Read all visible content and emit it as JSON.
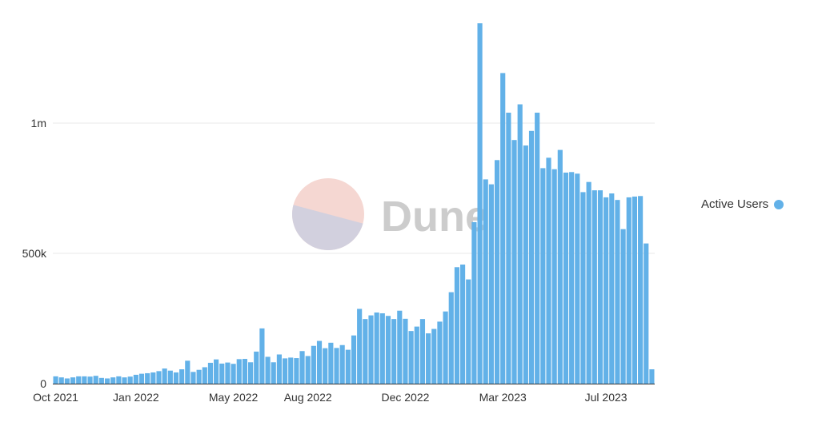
{
  "brand": {
    "watermark": "Dune"
  },
  "colors": {
    "bar": "#62b1e8",
    "grid": "#e8e8e8",
    "axis": "#333333",
    "wm_top": "#f5d7d2",
    "wm_bottom": "#d2d0de"
  },
  "chart_data": {
    "type": "bar",
    "grid": true,
    "legend_position": "right",
    "ylim": [
      0,
      1400000
    ],
    "y_ticks": [
      {
        "value": 0,
        "label": "0"
      },
      {
        "value": 500000,
        "label": "500k"
      },
      {
        "value": 1000000,
        "label": "1m"
      }
    ],
    "x_ticks": [
      {
        "index": 0,
        "label": "Oct 2021"
      },
      {
        "index": 14,
        "label": "Jan 2022"
      },
      {
        "index": 31,
        "label": "May 2022"
      },
      {
        "index": 44,
        "label": "Aug 2022"
      },
      {
        "index": 61,
        "label": "Dec 2022"
      },
      {
        "index": 78,
        "label": "Mar 2023"
      },
      {
        "index": 96,
        "label": "Jul 2023"
      }
    ],
    "series": [
      {
        "name": "Active Users",
        "values": [
          28000,
          24000,
          20000,
          24000,
          28000,
          28000,
          27000,
          30000,
          22000,
          20000,
          24000,
          28000,
          24000,
          27000,
          34000,
          38000,
          40000,
          43000,
          48000,
          58000,
          50000,
          43000,
          55000,
          88000,
          45000,
          53000,
          63000,
          80000,
          93000,
          77000,
          81000,
          76000,
          94000,
          95000,
          82000,
          123000,
          212000,
          103000,
          82000,
          112000,
          97000,
          100000,
          98000,
          125000,
          106000,
          145000,
          164000,
          136000,
          157000,
          137000,
          148000,
          130000,
          185000,
          287000,
          248000,
          262000,
          273000,
          270000,
          260000,
          248000,
          280000,
          249000,
          202000,
          219000,
          248000,
          193000,
          210000,
          238000,
          277000,
          351000,
          447000,
          457000,
          400000,
          620000,
          1383000,
          784000,
          765000,
          858000,
          1192000,
          1040000,
          935000,
          1072000,
          914000,
          970000,
          1040000,
          827000,
          867000,
          823000,
          897000,
          810000,
          812000,
          806000,
          735000,
          774000,
          742000,
          742000,
          715000,
          730000,
          705000,
          593000,
          715000,
          718000,
          720000,
          538000,
          55000
        ]
      }
    ]
  }
}
